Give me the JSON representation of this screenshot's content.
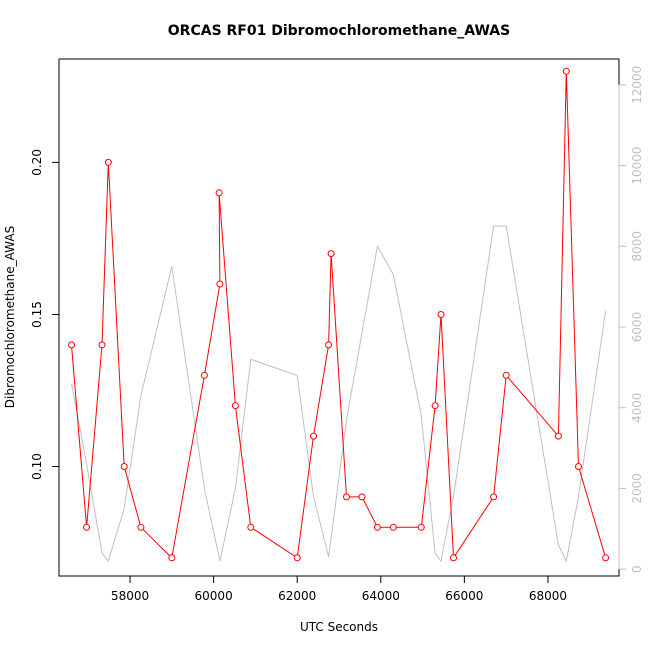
{
  "chart_data": {
    "type": "line",
    "title": "ORCAS RF01 Dibromochloromethane_AWAS",
    "xlabel": "UTC Seconds",
    "ylabel": "Dibromochloromethane_AWAS",
    "xlim": [
      56300,
      69700
    ],
    "ylim": [
      0.064,
      0.234
    ],
    "y2lim": [
      -170,
      12640
    ],
    "x_ticks": [
      58000,
      60000,
      62000,
      64000,
      66000,
      68000
    ],
    "y_ticks": [
      0.1,
      0.15,
      0.2
    ],
    "y_tick_labels": [
      "0.10",
      "0.15",
      "0.20"
    ],
    "y2_ticks": [
      0,
      2000,
      4000,
      6000,
      8000,
      10000,
      12000
    ],
    "grid": false,
    "colors": {
      "primary": "#ff0000",
      "secondary": "#c0c0c0",
      "axis": "#000000"
    },
    "series": [
      {
        "axis": "left",
        "marker": "open-circle",
        "x": [
          56600,
          56960,
          57330,
          57480,
          57860,
          58260,
          59000,
          59780,
          60150,
          60130,
          60520,
          60890,
          62000,
          62390,
          62750,
          62810,
          63180,
          63550,
          63920,
          64300,
          64970,
          65300,
          65440,
          65740,
          66700,
          67000,
          68250,
          68440,
          68730,
          69380
        ],
        "y": [
          0.14,
          0.08,
          0.14,
          0.2,
          0.1,
          0.08,
          0.07,
          0.13,
          0.16,
          0.19,
          0.12,
          0.08,
          0.07,
          0.11,
          0.14,
          0.17,
          0.09,
          0.09,
          0.08,
          0.08,
          0.08,
          0.12,
          0.15,
          0.07,
          0.09,
          0.13,
          0.11,
          0.23,
          0.1,
          0.07
        ]
      },
      {
        "axis": "right",
        "marker": "none",
        "x": [
          56600,
          56960,
          57330,
          57480,
          57860,
          58260,
          59000,
          59780,
          60150,
          60520,
          60890,
          62000,
          62390,
          62750,
          63180,
          63920,
          64300,
          64970,
          65300,
          65440,
          65740,
          66700,
          67000,
          68250,
          68440,
          68730,
          69380
        ],
        "y": [
          4600,
          2600,
          400,
          200,
          1500,
          4300,
          7500,
          2000,
          200,
          2000,
          5200,
          4800,
          1800,
          300,
          3700,
          8000,
          7300,
          3800,
          400,
          200,
          1800,
          8500,
          8500,
          600,
          200,
          1800,
          6400
        ]
      }
    ]
  }
}
